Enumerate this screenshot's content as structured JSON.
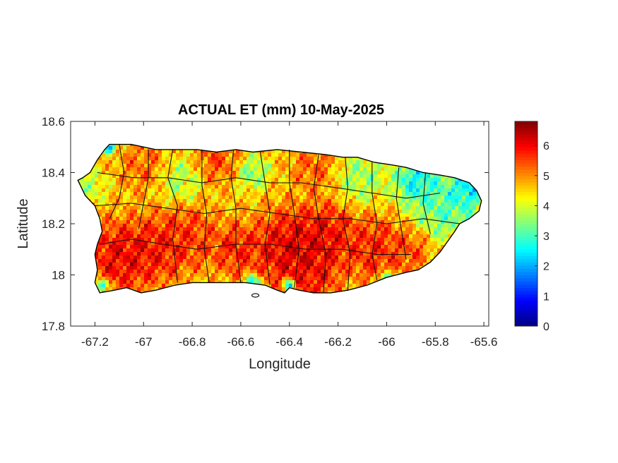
{
  "title": "ACTUAL ET (mm) 10-May-2025",
  "x_axis": {
    "label": "Longitude",
    "range": [
      -67.3,
      -65.58
    ],
    "ticks": [
      {
        "value": -67.2,
        "label": "-67.2"
      },
      {
        "value": -67.0,
        "label": "-67"
      },
      {
        "value": -66.8,
        "label": "-66.8"
      },
      {
        "value": -66.6,
        "label": "-66.6"
      },
      {
        "value": -66.4,
        "label": "-66.4"
      },
      {
        "value": -66.2,
        "label": "-66.2"
      },
      {
        "value": -66.0,
        "label": "-66"
      },
      {
        "value": -65.8,
        "label": "-65.8"
      },
      {
        "value": -65.6,
        "label": "-65.6"
      }
    ]
  },
  "y_axis": {
    "label": "Latitude",
    "range": [
      17.8,
      18.6
    ],
    "ticks": [
      {
        "value": 17.8,
        "label": "17.8"
      },
      {
        "value": 18.0,
        "label": "18"
      },
      {
        "value": 18.2,
        "label": "18.2"
      },
      {
        "value": 18.4,
        "label": "18.4"
      },
      {
        "value": 18.6,
        "label": "18.6"
      }
    ]
  },
  "colorbar": {
    "colormap": "jet",
    "range": [
      0,
      6.8
    ],
    "ticks": [
      {
        "value": 0,
        "label": "0"
      },
      {
        "value": 1,
        "label": "1"
      },
      {
        "value": 2,
        "label": "2"
      },
      {
        "value": 3,
        "label": "3"
      },
      {
        "value": 4,
        "label": "4"
      },
      {
        "value": 5,
        "label": "5"
      },
      {
        "value": 6,
        "label": "6"
      }
    ]
  },
  "map": {
    "region_outline": [
      [
        -67.27,
        18.37
      ],
      [
        -67.25,
        18.38
      ],
      [
        -67.22,
        18.4
      ],
      [
        -67.19,
        18.45
      ],
      [
        -67.16,
        18.49
      ],
      [
        -67.14,
        18.51
      ],
      [
        -67.05,
        18.51
      ],
      [
        -66.95,
        18.49
      ],
      [
        -66.86,
        18.49
      ],
      [
        -66.78,
        18.49
      ],
      [
        -66.7,
        18.48
      ],
      [
        -66.62,
        18.49
      ],
      [
        -66.55,
        18.48
      ],
      [
        -66.45,
        18.49
      ],
      [
        -66.35,
        18.48
      ],
      [
        -66.25,
        18.47
      ],
      [
        -66.18,
        18.46
      ],
      [
        -66.12,
        18.46
      ],
      [
        -66.05,
        18.44
      ],
      [
        -65.98,
        18.43
      ],
      [
        -65.92,
        18.42
      ],
      [
        -65.85,
        18.4
      ],
      [
        -65.78,
        18.39
      ],
      [
        -65.72,
        18.38
      ],
      [
        -65.66,
        18.36
      ],
      [
        -65.63,
        18.33
      ],
      [
        -65.61,
        18.29
      ],
      [
        -65.62,
        18.25
      ],
      [
        -65.66,
        18.22
      ],
      [
        -65.7,
        18.2
      ],
      [
        -65.72,
        18.17
      ],
      [
        -65.75,
        18.13
      ],
      [
        -65.78,
        18.09
      ],
      [
        -65.82,
        18.05
      ],
      [
        -65.87,
        18.02
      ],
      [
        -65.92,
        18.01
      ],
      [
        -66.0,
        17.99
      ],
      [
        -66.08,
        17.96
      ],
      [
        -66.16,
        17.94
      ],
      [
        -66.23,
        17.93
      ],
      [
        -66.3,
        17.93
      ],
      [
        -66.36,
        17.94
      ],
      [
        -66.4,
        17.95
      ],
      [
        -66.42,
        17.93
      ],
      [
        -66.45,
        17.94
      ],
      [
        -66.5,
        17.96
      ],
      [
        -66.58,
        17.97
      ],
      [
        -66.66,
        17.97
      ],
      [
        -66.73,
        17.97
      ],
      [
        -66.8,
        17.97
      ],
      [
        -66.87,
        17.96
      ],
      [
        -66.95,
        17.94
      ],
      [
        -67.01,
        17.93
      ],
      [
        -67.07,
        17.95
      ],
      [
        -67.12,
        17.94
      ],
      [
        -67.18,
        17.93
      ],
      [
        -67.2,
        17.97
      ],
      [
        -67.19,
        18.02
      ],
      [
        -67.2,
        18.08
      ],
      [
        -67.19,
        18.12
      ],
      [
        -67.17,
        18.17
      ],
      [
        -67.18,
        18.22
      ],
      [
        -67.2,
        18.27
      ],
      [
        -67.24,
        18.31
      ],
      [
        -67.27,
        18.37
      ]
    ],
    "et_field": {
      "base": 4.6,
      "blobs": [
        {
          "lon": -67.1,
          "lat": 18.07,
          "r": 0.11,
          "v": 6.6
        },
        {
          "lon": -66.95,
          "lat": 18.1,
          "r": 0.1,
          "v": 6.3
        },
        {
          "lon": -66.82,
          "lat": 18.15,
          "r": 0.1,
          "v": 6.0
        },
        {
          "lon": -66.62,
          "lat": 18.1,
          "r": 0.08,
          "v": 6.2
        },
        {
          "lon": -66.4,
          "lat": 18.1,
          "r": 0.12,
          "v": 6.8
        },
        {
          "lon": -66.25,
          "lat": 18.15,
          "r": 0.1,
          "v": 6.5
        },
        {
          "lon": -66.05,
          "lat": 18.1,
          "r": 0.1,
          "v": 6.2
        },
        {
          "lon": -65.9,
          "lat": 18.1,
          "r": 0.07,
          "v": 5.8
        },
        {
          "lon": -66.3,
          "lat": 18.0,
          "r": 0.08,
          "v": 6.3
        },
        {
          "lon": -66.7,
          "lat": 18.45,
          "r": 0.07,
          "v": 5.8
        },
        {
          "lon": -66.3,
          "lat": 18.42,
          "r": 0.07,
          "v": 5.6
        },
        {
          "lon": -67.0,
          "lat": 18.43,
          "r": 0.08,
          "v": 5.5
        },
        {
          "lon": -65.75,
          "lat": 18.28,
          "r": 0.12,
          "v": 2.5
        },
        {
          "lon": -65.88,
          "lat": 18.37,
          "r": 0.07,
          "v": 1.8
        },
        {
          "lon": -65.67,
          "lat": 18.33,
          "r": 0.05,
          "v": 1.5
        },
        {
          "lon": -66.1,
          "lat": 18.38,
          "r": 0.08,
          "v": 3.2
        },
        {
          "lon": -66.55,
          "lat": 18.4,
          "r": 0.05,
          "v": 3.0
        },
        {
          "lon": -66.85,
          "lat": 18.37,
          "r": 0.07,
          "v": 3.4
        },
        {
          "lon": -67.14,
          "lat": 18.5,
          "r": 0.02,
          "v": 0.2
        },
        {
          "lon": -66.4,
          "lat": 17.96,
          "r": 0.02,
          "v": 0.4
        },
        {
          "lon": -66.55,
          "lat": 17.97,
          "r": 0.025,
          "v": 1.5
        },
        {
          "lon": -67.17,
          "lat": 17.96,
          "r": 0.02,
          "v": 0.6
        },
        {
          "lon": -66.0,
          "lat": 17.99,
          "r": 0.02,
          "v": 1.0
        },
        {
          "lon": -67.22,
          "lat": 18.35,
          "r": 0.05,
          "v": 3.5
        }
      ]
    }
  }
}
